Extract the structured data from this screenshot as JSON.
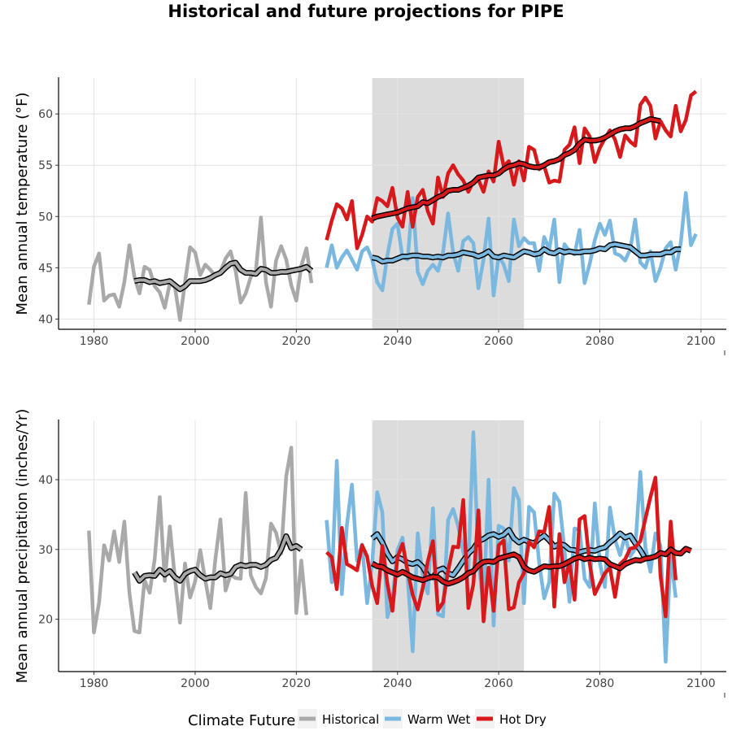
{
  "title": "Historical and future projections for PIPE",
  "legend": {
    "title": "Climate Future",
    "items": [
      {
        "label": "Historical",
        "color": "#a9a9a9"
      },
      {
        "label": "Warm Wet",
        "color": "#7ab8e0"
      },
      {
        "label": "Hot Dry",
        "color": "#d7191c"
      }
    ],
    "placement": "bottom"
  },
  "chart_data": [
    {
      "type": "line",
      "ylabel": "Mean annual temperature (°F)",
      "xlim": [
        1973,
        2105
      ],
      "ylim": [
        39,
        63.5
      ],
      "xticks": [
        1980,
        2000,
        2020,
        2040,
        2060,
        2080,
        2100
      ],
      "yticks": [
        40,
        45,
        50,
        55,
        60
      ],
      "grid": true,
      "shaded_period": [
        2035,
        2065
      ],
      "series": [
        {
          "name": "Historical",
          "color": "#a9a9a9",
          "x_start": 1979,
          "values": [
            41.4,
            45.1,
            46.4,
            41.8,
            42.3,
            42.4,
            41.2,
            43.6,
            47.2,
            44.1,
            42.5,
            45.1,
            44.8,
            43.2,
            42.6,
            41.1,
            43.5,
            43.1,
            39.9,
            43.6,
            47.0,
            46.5,
            44.3,
            45.3,
            44.8,
            44.2,
            44.6,
            45.9,
            46.6,
            44.7,
            41.6,
            42.5,
            44.1,
            44.7,
            49.9,
            43.6,
            41.2,
            45.7,
            47.1,
            45.8,
            43.3,
            41.8,
            45.2,
            46.9,
            43.5
          ]
        },
        {
          "name": "Historical 10-yr mean",
          "color": "#a9a9a9",
          "x_start": 1988,
          "values": [
            43.7,
            43.8,
            43.8,
            43.6,
            43.7,
            43.5,
            43.6,
            43.7,
            43.3,
            42.9,
            43.2,
            43.7,
            43.7,
            43.7,
            43.8,
            44.0,
            44.3,
            44.5,
            45.0,
            45.4,
            45.5,
            44.8,
            44.5,
            44.5,
            44.4,
            44.9,
            44.8,
            44.5,
            44.5,
            44.6,
            44.6,
            44.7,
            44.8,
            44.9,
            45.1,
            44.7
          ]
        },
        {
          "name": "Warm Wet",
          "color": "#7ab8e0",
          "x_start": 2026,
          "values": [
            45.0,
            47.2,
            45.0,
            46.0,
            46.7,
            45.8,
            44.8,
            46.6,
            47.0,
            45.8,
            43.6,
            42.8,
            46.2,
            48.8,
            49.3,
            46.0,
            45.8,
            51.8,
            44.6,
            43.4,
            44.7,
            45.3,
            44.7,
            46.5,
            50.3,
            46.5,
            44.7,
            47.6,
            48.0,
            47.4,
            43.0,
            45.8,
            49.8,
            42.3,
            46.2,
            45.3,
            43.7,
            49.7,
            47.1,
            47.9,
            47.4,
            47.4,
            44.7,
            48.0,
            46.8,
            49.7,
            43.6,
            47.3,
            46.6,
            46.3,
            48.7,
            43.5,
            45.4,
            47.7,
            49.3,
            48.2,
            49.6,
            46.4,
            46.2,
            45.7,
            46.8,
            49.7,
            45.5,
            45.0,
            46.6,
            43.7,
            45.0,
            46.9,
            47.5,
            44.8,
            47.4,
            52.3,
            47.2,
            48.3
          ]
        },
        {
          "name": "Warm Wet 10-yr mean",
          "color": "#7ab8e0",
          "x_start": 2035,
          "values": [
            46.0,
            45.9,
            45.6,
            45.7,
            45.7,
            45.9,
            46.1,
            46.1,
            46.2,
            46.2,
            46.1,
            46.1,
            46.0,
            46.1,
            46.0,
            46.2,
            46.2,
            46.3,
            46.5,
            46.4,
            46.3,
            46.1,
            46.3,
            46.6,
            46.1,
            46.0,
            46.2,
            46.1,
            46.0,
            46.3,
            46.6,
            46.5,
            46.3,
            46.4,
            46.8,
            46.5,
            46.4,
            46.7,
            46.5,
            46.6,
            46.5,
            46.5,
            46.6,
            46.6,
            46.7,
            46.9,
            46.8,
            47.2,
            47.3,
            47.2,
            47.1,
            47.0,
            46.6,
            46.2,
            46.2,
            46.3,
            46.3,
            46.3,
            46.5,
            46.5,
            46.8,
            46.8
          ]
        },
        {
          "name": "Hot Dry",
          "color": "#d7191c",
          "x_start": 2026,
          "values": [
            47.7,
            49.6,
            51.2,
            50.8,
            49.7,
            51.5,
            46.9,
            48.2,
            50.0,
            49.5,
            51.8,
            51.5,
            51.0,
            52.8,
            49.9,
            49.0,
            52.4,
            49.0,
            51.9,
            52.6,
            50.5,
            49.3,
            53.8,
            51.9,
            54.2,
            55.0,
            54.1,
            53.5,
            52.4,
            53.4,
            53.6,
            52.4,
            54.4,
            53.4,
            57.3,
            54.9,
            55.4,
            53.1,
            55.4,
            53.5,
            56.8,
            56.5,
            54.6,
            54.9,
            53.3,
            53.5,
            53.4,
            56.5,
            57.0,
            58.7,
            55.2,
            58.6,
            57.8,
            55.3,
            56.7,
            57.6,
            58.4,
            57.5,
            55.8,
            57.9,
            57.3,
            56.9,
            60.9,
            61.6,
            60.8,
            57.6,
            59.3,
            58.4,
            57.8,
            60.8,
            58.3,
            59.4,
            61.8,
            62.2
          ]
        },
        {
          "name": "Hot Dry 10-yr mean",
          "color": "#d7191c",
          "x_start": 2035,
          "values": [
            49.8,
            50.0,
            50.1,
            50.2,
            50.3,
            50.4,
            50.6,
            50.8,
            50.9,
            51.0,
            51.4,
            51.3,
            51.6,
            51.9,
            52.1,
            52.5,
            52.6,
            52.6,
            52.8,
            53.0,
            53.3,
            53.8,
            53.9,
            54.0,
            54.0,
            54.2,
            54.6,
            54.9,
            55.0,
            55.2,
            55.1,
            54.9,
            54.8,
            54.8,
            55.0,
            55.3,
            55.4,
            55.6,
            56.0,
            56.2,
            56.5,
            57.1,
            57.5,
            57.4,
            57.4,
            57.5,
            57.7,
            58.0,
            58.3,
            58.5,
            58.6,
            58.6,
            58.8,
            59.1,
            59.3,
            59.5,
            59.4,
            59.3
          ]
        }
      ]
    },
    {
      "type": "line",
      "ylabel": "Mean annual precipitation (inches/Yr)",
      "xlim": [
        1973,
        2105
      ],
      "ylim": [
        12.5,
        48.5
      ],
      "xticks": [
        1980,
        2000,
        2020,
        2040,
        2060,
        2080,
        2100
      ],
      "yticks": [
        20,
        30,
        40
      ],
      "grid": true,
      "shaded_period": [
        2035,
        2065
      ],
      "series": [
        {
          "name": "Historical",
          "color": "#a9a9a9",
          "x_start": 1979,
          "values": [
            32.7,
            18.1,
            22.4,
            30.6,
            28.4,
            32.6,
            28.2,
            34.0,
            23.8,
            18.3,
            18.1,
            25.6,
            23.8,
            28.6,
            37.5,
            25.5,
            33.3,
            25.8,
            19.5,
            28.0,
            23.1,
            25.4,
            29.9,
            25.6,
            21.6,
            28.6,
            34.3,
            24.1,
            26.4,
            25.9,
            25.8,
            38.1,
            26.3,
            24.6,
            23.7,
            25.9,
            33.7,
            32.4,
            29.4,
            40.5,
            44.6,
            20.9,
            28.4,
            20.6
          ]
        },
        {
          "name": "Historical 10-yr mean",
          "color": "#a9a9a9",
          "x_start": 1988,
          "values": [
            26.7,
            25.5,
            26.2,
            26.3,
            26.2,
            27.1,
            26.4,
            26.9,
            26.0,
            25.5,
            26.5,
            26.9,
            27.1,
            26.3,
            25.8,
            26.0,
            26.0,
            26.6,
            26.3,
            26.5,
            27.5,
            27.8,
            27.6,
            27.8,
            27.8,
            27.5,
            27.8,
            28.5,
            28.8,
            30.0,
            31.9,
            30.2,
            30.5,
            30.0
          ]
        },
        {
          "name": "Warm Wet",
          "color": "#7ab8e0",
          "x_start": 2026,
          "values": [
            34.2,
            25.3,
            42.7,
            23.6,
            33.5,
            39.3,
            28.4,
            30.7,
            22.3,
            28.0,
            38.2,
            35.3,
            20.3,
            22.8,
            29.9,
            31.7,
            26.1,
            15.4,
            32.3,
            26.1,
            23.7,
            35.9,
            20.7,
            20.4,
            34.2,
            35.8,
            33.3,
            29.6,
            27.1,
            46.8,
            28.5,
            21.8,
            40.0,
            19.1,
            33.4,
            33.0,
            28.4,
            38.8,
            37.1,
            22.3,
            36.1,
            35.3,
            28.1,
            23.0,
            25.3,
            38.0,
            36.8,
            30.0,
            22.5,
            33.0,
            32.8,
            25.8,
            24.6,
            36.6,
            28.1,
            24.6,
            36.0,
            31.4,
            29.2,
            32.0,
            29.0,
            30.1,
            41.1,
            30.3,
            26.8,
            32.3,
            30.5,
            13.9,
            29.2,
            23.1
          ]
        },
        {
          "name": "Warm Wet 10-yr mean",
          "color": "#7ab8e0",
          "x_start": 2035,
          "values": [
            31.6,
            32.2,
            31.0,
            29.4,
            28.3,
            28.9,
            28.6,
            28.1,
            27.9,
            28.2,
            27.5,
            26.2,
            26.0,
            27.0,
            27.3,
            26.6,
            26.3,
            27.3,
            28.4,
            29.4,
            30.1,
            31.2,
            31.5,
            32.0,
            32.2,
            31.8,
            32.1,
            32.8,
            31.6,
            31.0,
            31.4,
            31.1,
            30.9,
            31.5,
            32.0,
            31.3,
            30.4,
            30.8,
            30.6,
            30.0,
            29.9,
            29.6,
            29.8,
            29.9,
            29.8,
            30.1,
            30.3,
            31.0,
            31.6,
            32.3,
            31.7,
            32.0,
            30.9,
            29.9,
            28.7
          ]
        },
        {
          "name": "Hot Dry",
          "color": "#d7191c",
          "x_start": 2026,
          "values": [
            29.6,
            28.9,
            24.3,
            33.1,
            27.9,
            27.5,
            27.0,
            30.6,
            29.0,
            24.8,
            22.3,
            30.5,
            25.1,
            21.2,
            28.9,
            30.8,
            26.9,
            23.5,
            21.4,
            24.5,
            28.3,
            31.2,
            21.3,
            22.4,
            26.9,
            30.4,
            30.3,
            37.1,
            21.6,
            25.0,
            35.6,
            19.7,
            27.4,
            21.2,
            30.6,
            31.3,
            21.4,
            21.7,
            25.3,
            26.6,
            31.1,
            30.3,
            32.6,
            32.5,
            36.1,
            21.8,
            32.2,
            25.3,
            28.1,
            22.8,
            34.3,
            34.8,
            27.9,
            23.6,
            25.1,
            26.6,
            27.4,
            23.2,
            27.9,
            28.6,
            30.1,
            30.3,
            31.2,
            34.4,
            37.5,
            40.3,
            26.2,
            20.4,
            34.0,
            25.6
          ]
        },
        {
          "name": "Hot Dry 10-yr mean",
          "color": "#d7191c",
          "x_start": 2035,
          "values": [
            28.0,
            27.6,
            27.5,
            27.0,
            26.7,
            26.4,
            26.8,
            26.4,
            26.0,
            25.8,
            25.6,
            25.9,
            26.1,
            26.0,
            25.4,
            25.1,
            25.3,
            25.6,
            26.0,
            26.6,
            26.9,
            27.7,
            28.2,
            28.3,
            28.2,
            28.7,
            28.9,
            29.1,
            29.3,
            28.9,
            27.5,
            27.0,
            26.8,
            27.2,
            27.6,
            27.5,
            27.6,
            27.6,
            27.9,
            28.3,
            28.7,
            28.9,
            28.6,
            28.8,
            28.6,
            28.7,
            28.6,
            27.9,
            27.6,
            27.3,
            27.9,
            28.2,
            28.5,
            28.4,
            28.7,
            28.8,
            29.0,
            29.5,
            29.3,
            30.0,
            29.5,
            29.4,
            30.1,
            29.8
          ]
        }
      ]
    }
  ]
}
